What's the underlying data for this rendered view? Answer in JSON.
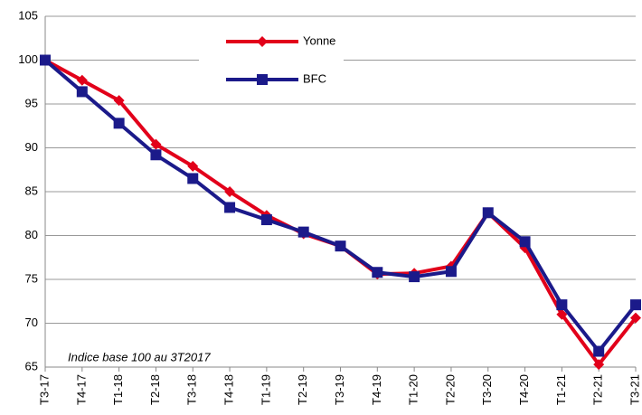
{
  "chart_data": {
    "type": "line",
    "categories": [
      "T3-17",
      "T4-17",
      "T1-18",
      "T2-18",
      "T3-18",
      "T4-18",
      "T1-19",
      "T2-19",
      "T3-19",
      "T4-19",
      "T1-20",
      "T2-20",
      "T3-20",
      "T4-20",
      "T1-21",
      "T2-21",
      "T3-21"
    ],
    "series": [
      {
        "name": "Yonne",
        "color": "#e2001a",
        "marker": "diamond",
        "values": [
          100,
          97.7,
          95.4,
          90.4,
          87.9,
          85.0,
          82.3,
          80.2,
          78.8,
          75.6,
          75.7,
          76.5,
          82.6,
          78.6,
          71.0,
          65.3,
          70.6
        ]
      },
      {
        "name": "BFC",
        "color": "#1b1a8a",
        "marker": "square",
        "values": [
          100,
          96.4,
          92.8,
          89.2,
          86.5,
          83.2,
          81.8,
          80.4,
          78.8,
          75.8,
          75.3,
          75.9,
          82.6,
          79.3,
          72.1,
          66.8,
          72.1
        ]
      }
    ],
    "ylim": [
      65,
      105
    ],
    "yticks": [
      65,
      70,
      75,
      80,
      85,
      90,
      95,
      100,
      105
    ],
    "grid": true,
    "legend": "top",
    "annotations": [
      "Indice base 100 au 3T2017"
    ]
  }
}
